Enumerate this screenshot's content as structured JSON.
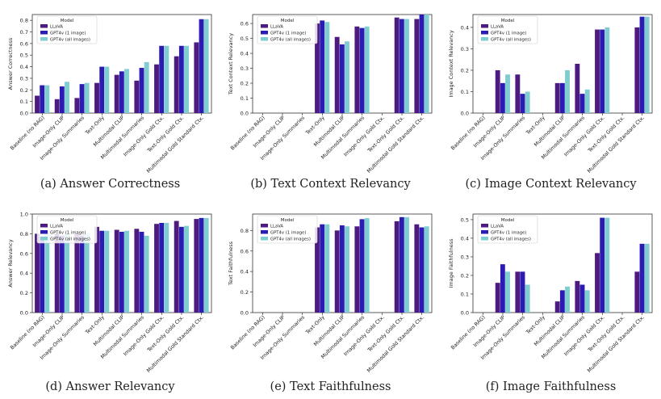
{
  "colors": {
    "llava": "#4d1a7f",
    "gpt4v_1": "#2b1bb3",
    "gpt4v_all": "#7fcdd1"
  },
  "legend": {
    "title": "Model",
    "entries": [
      "LLaVA",
      "GPT4v (1 image)",
      "GPT4v (all images)"
    ]
  },
  "chart_data": [
    {
      "type": "bar",
      "title": "(a) Answer Correctness",
      "ylabel": "Answer Correctness",
      "ylim": [
        0,
        0.85
      ],
      "yticks": [
        0.0,
        0.1,
        0.2,
        0.3,
        0.4,
        0.5,
        0.6,
        0.7,
        0.8
      ],
      "categories": [
        "Baseline (no RAG)",
        "Image-Only CLIP",
        "Image-Only Summaries",
        "Text-Only",
        "Multimodal CLIP",
        "Multimodal Summaries",
        "Image-Only Gold Ctx.",
        "Text-Only Gold Ctx.",
        "Multimodal Gold Standard Ctx."
      ],
      "series": [
        {
          "name": "LLaVA",
          "values": [
            0.15,
            0.12,
            0.13,
            0.26,
            0.33,
            0.28,
            0.42,
            0.49,
            0.61
          ]
        },
        {
          "name": "GPT4v (1 image)",
          "values": [
            0.24,
            0.23,
            0.25,
            0.4,
            0.36,
            0.39,
            0.58,
            0.58,
            0.81
          ]
        },
        {
          "name": "GPT4v (all images)",
          "values": [
            0.24,
            0.27,
            0.26,
            0.4,
            0.38,
            0.44,
            0.58,
            0.58,
            0.81
          ]
        }
      ]
    },
    {
      "type": "bar",
      "title": "(b) Text Context Relevancy",
      "ylabel": "Text Context Relevancy",
      "ylim": [
        0,
        0.66
      ],
      "yticks": [
        0.0,
        0.1,
        0.2,
        0.3,
        0.4,
        0.5,
        0.6
      ],
      "categories": [
        "Baseline (no RAG)",
        "Image-Only CLIP",
        "Image-Only Summaries",
        "Text-Only",
        "Multimodal CLIP",
        "Multimodal Summaries",
        "Image-Only Gold Ctx.",
        "Text-Only Gold Ctx.",
        "Multimodal Gold Standard Ctx."
      ],
      "series": [
        {
          "name": "LLaVA",
          "values": [
            0,
            0,
            0,
            0.6,
            0.51,
            0.58,
            0,
            0.64,
            0.63
          ]
        },
        {
          "name": "GPT4v (1 image)",
          "values": [
            0,
            0,
            0,
            0.62,
            0.46,
            0.57,
            0,
            0.63,
            0.66
          ]
        },
        {
          "name": "GPT4v (all images)",
          "values": [
            0,
            0,
            0,
            0.61,
            0.48,
            0.58,
            0,
            0.63,
            0.66
          ]
        }
      ]
    },
    {
      "type": "bar",
      "title": "(c) Image Context Relevancy",
      "ylabel": "Image Context Relevancy",
      "ylim": [
        0,
        0.46
      ],
      "yticks": [
        0.0,
        0.1,
        0.2,
        0.3,
        0.4
      ],
      "categories": [
        "Baseline (no RAG)",
        "Image-Only CLIP",
        "Image-Only Summaries",
        "Text-Only",
        "Multimodal CLIP",
        "Multimodal Summaries",
        "Image-Only Gold Ctx.",
        "Text-Only Gold Ctx.",
        "Multimodal Gold Standard Ctx."
      ],
      "series": [
        {
          "name": "LLaVA",
          "values": [
            0,
            0.2,
            0.18,
            0,
            0.14,
            0.23,
            0.39,
            0,
            0.4
          ]
        },
        {
          "name": "GPT4v (1 image)",
          "values": [
            0,
            0.14,
            0.09,
            0,
            0.14,
            0.09,
            0.39,
            0,
            0.45
          ]
        },
        {
          "name": "GPT4v (all images)",
          "values": [
            0,
            0.18,
            0.1,
            0,
            0.2,
            0.11,
            0.4,
            0,
            0.45
          ]
        }
      ]
    },
    {
      "type": "bar",
      "title": "(d) Answer Relevancy",
      "ylabel": "Answer Relevancy",
      "ylim": [
        0,
        1.0
      ],
      "yticks": [
        0.0,
        0.2,
        0.4,
        0.6,
        0.8,
        1.0
      ],
      "categories": [
        "Baseline (no RAG)",
        "Image-Only CLIP",
        "Image-Only Summaries",
        "Text-Only",
        "Multimodal CLIP",
        "Multimodal Summaries",
        "Image-Only Gold Ctx.",
        "Text-Only Gold Ctx.",
        "Multimodal Gold Standard Ctx."
      ],
      "series": [
        {
          "name": "LLaVA",
          "values": [
            0.8,
            0.8,
            0.8,
            0.87,
            0.84,
            0.85,
            0.9,
            0.93,
            0.95
          ]
        },
        {
          "name": "GPT4v (1 image)",
          "values": [
            0.77,
            0.78,
            0.78,
            0.83,
            0.82,
            0.82,
            0.91,
            0.87,
            0.96
          ]
        },
        {
          "name": "GPT4v (all images)",
          "values": [
            0.81,
            0.8,
            0.8,
            0.83,
            0.83,
            0.78,
            0.91,
            0.88,
            0.96
          ]
        }
      ]
    },
    {
      "type": "bar",
      "title": "(e) Text Faithfulness",
      "ylabel": "Text Faithfulness",
      "ylim": [
        0,
        0.96
      ],
      "yticks": [
        0.0,
        0.2,
        0.4,
        0.6,
        0.8
      ],
      "categories": [
        "Baseline (no RAG)",
        "Image-Only CLIP",
        "Image-Only Summaries",
        "Text-Only",
        "Multimodal CLIP",
        "Multimodal Summaries",
        "Image-Only Gold Ctx.",
        "Text-Only Gold Ctx.",
        "Multimodal Gold Standard Ctx."
      ],
      "series": [
        {
          "name": "LLaVA",
          "values": [
            0,
            0,
            0,
            0.83,
            0.8,
            0.84,
            0,
            0.89,
            0.86
          ]
        },
        {
          "name": "GPT4v (1 image)",
          "values": [
            0,
            0,
            0,
            0.86,
            0.85,
            0.91,
            0,
            0.93,
            0.83
          ]
        },
        {
          "name": "GPT4v (all images)",
          "values": [
            0,
            0,
            0,
            0.86,
            0.84,
            0.92,
            0,
            0.93,
            0.84
          ]
        }
      ]
    },
    {
      "type": "bar",
      "title": "(f) Image Faithfulness",
      "ylabel": "Image Faithfulness",
      "ylim": [
        0,
        0.53
      ],
      "yticks": [
        0.0,
        0.1,
        0.2,
        0.3,
        0.4,
        0.5
      ],
      "categories": [
        "Baseline (no RAG)",
        "Image-Only CLIP",
        "Image-Only Summaries",
        "Text-Only",
        "Multimodal CLIP",
        "Multimodal Summaries",
        "Image-Only Gold Ctx.",
        "Text-Only Gold Ctx.",
        "Multimodal Gold Standard Ctx."
      ],
      "series": [
        {
          "name": "LLaVA",
          "values": [
            0,
            0.16,
            0.22,
            0,
            0.06,
            0.17,
            0.32,
            0,
            0.22
          ]
        },
        {
          "name": "GPT4v (1 image)",
          "values": [
            0,
            0.26,
            0.22,
            0,
            0.12,
            0.15,
            0.51,
            0,
            0.37
          ]
        },
        {
          "name": "GPT4v (all images)",
          "values": [
            0,
            0.22,
            0.15,
            0,
            0.14,
            0.12,
            0.51,
            0,
            0.37
          ]
        }
      ]
    }
  ]
}
